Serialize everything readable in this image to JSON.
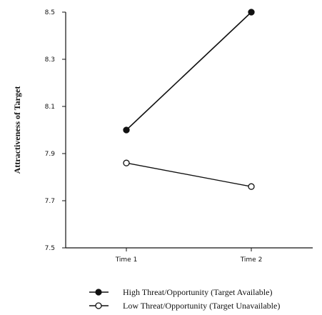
{
  "chart_data": {
    "type": "line",
    "title": "",
    "xlabel": "",
    "ylabel": "Attractiveness of Target",
    "categories": [
      "Time 1",
      "Time 2"
    ],
    "ylim": [
      7.5,
      8.5
    ],
    "yticks": [
      "7.5",
      "7.7",
      "7.9",
      "8.1",
      "8.3",
      "8.5"
    ],
    "grid": false,
    "legend_position": "bottom",
    "series": [
      {
        "name": "High Threat/Opportunity (Target Available)",
        "marker": "filled-circle",
        "values": [
          8.0,
          8.5
        ]
      },
      {
        "name": "Low Threat/Opportunity (Target Unavailable)",
        "marker": "open-circle",
        "values": [
          7.86,
          7.76
        ]
      }
    ]
  }
}
